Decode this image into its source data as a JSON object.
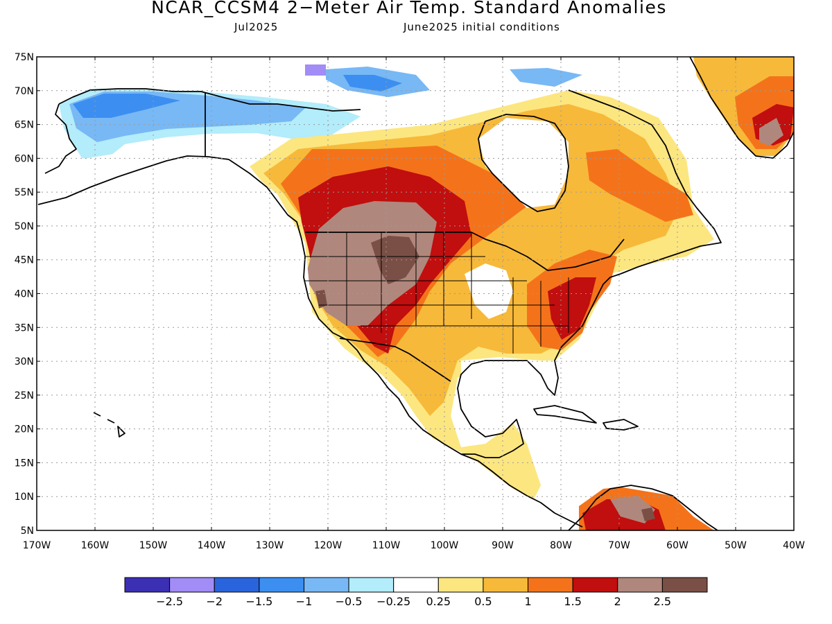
{
  "title": "NCAR_CCSM4 2−Meter Air Temp. Standard Anomalies",
  "subtitle_left": "Jul2025",
  "subtitle_right": "June2025 initial conditions",
  "lat_labels": [
    "75N",
    "70N",
    "65N",
    "60N",
    "55N",
    "50N",
    "45N",
    "40N",
    "35N",
    "30N",
    "25N",
    "20N",
    "15N",
    "10N",
    "5N"
  ],
  "lon_labels": [
    "170W",
    "160W",
    "150W",
    "140W",
    "130W",
    "120W",
    "110W",
    "100W",
    "90W",
    "80W",
    "70W",
    "60W",
    "50W",
    "40W"
  ],
  "colorbar": {
    "colors": [
      "#3b2fb4",
      "#a28cf5",
      "#2a64dc",
      "#3c8ff0",
      "#78b8f5",
      "#b3ecfa",
      "#ffffff",
      "#fce680",
      "#f7b93a",
      "#f4731a",
      "#c10e0e",
      "#b0877c",
      "#7a4f45"
    ],
    "labels": [
      "−2.5",
      "−2",
      "−1.5",
      "−1",
      "−0.5",
      "−0.25",
      "0.25",
      "0.5",
      "1",
      "1.5",
      "2",
      "2.5"
    ]
  },
  "map_regions": [
    {
      "name": "alaska-negative-anomaly",
      "level": "-1.5",
      "color": "#3c8ff0"
    },
    {
      "name": "canadian-arctic-negative-anomaly",
      "level": "-1",
      "color": "#78b8f5"
    },
    {
      "name": "western-us-extreme-anomaly",
      "level": ">2.5",
      "color": "#7a4f45"
    },
    {
      "name": "western-us-strong-anomaly",
      "level": "2",
      "color": "#b0877c"
    },
    {
      "name": "northern-plains-anomaly",
      "level": "1.5",
      "color": "#c10e0e"
    },
    {
      "name": "eastern-us-anomaly",
      "level": "1.5",
      "color": "#c10e0e"
    },
    {
      "name": "greenland-anomaly",
      "level": "2",
      "color": "#b0877c"
    },
    {
      "name": "hudson-bay-neutral",
      "level": "0",
      "color": "#ffffff"
    },
    {
      "name": "gulf-of-mexico-neutral",
      "level": "0",
      "color": "#ffffff"
    }
  ]
}
